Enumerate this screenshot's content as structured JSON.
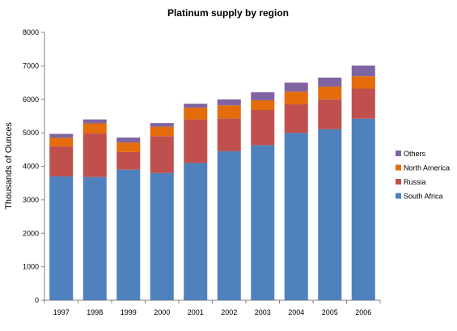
{
  "chart_data": {
    "type": "bar",
    "stacked": true,
    "title": "Platinum supply by region",
    "xlabel": "",
    "ylabel": "Thousands of Ounces",
    "ylim": [
      0,
      8000
    ],
    "yticks": [
      0,
      1000,
      2000,
      3000,
      4000,
      5000,
      6000,
      7000,
      8000
    ],
    "grid": false,
    "legend_position": "right",
    "categories": [
      "1997",
      "1998",
      "1999",
      "2000",
      "2001",
      "2002",
      "2003",
      "2004",
      "2005",
      "2006"
    ],
    "series": [
      {
        "name": "South Africa",
        "color": "#4f81bd",
        "values": [
          3700,
          3680,
          3900,
          3800,
          4100,
          4450,
          4630,
          5000,
          5110,
          5420
        ]
      },
      {
        "name": "Russia",
        "color": "#c0504d",
        "values": [
          900,
          1300,
          530,
          1100,
          1300,
          980,
          1050,
          850,
          890,
          900
        ]
      },
      {
        "name": "North America",
        "color": "#e46c0a",
        "values": [
          250,
          300,
          280,
          280,
          350,
          390,
          290,
          380,
          380,
          370
        ]
      },
      {
        "name": "Others",
        "color": "#8064a2",
        "values": [
          120,
          120,
          150,
          110,
          120,
          180,
          240,
          270,
          270,
          320
        ]
      }
    ]
  }
}
